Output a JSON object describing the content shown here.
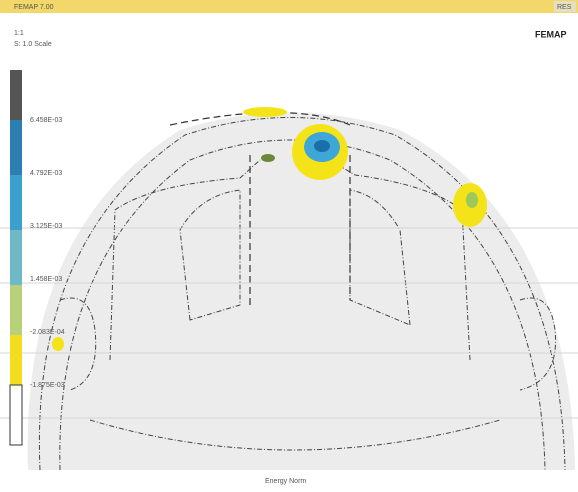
{
  "window": {
    "title": "FEMAP 7.00",
    "corner": "RES"
  },
  "view": {
    "info": [
      "1:1",
      "S: 1.0 Scale"
    ],
    "logo": "FEMAP",
    "footer": "Energy Norm"
  },
  "legend": {
    "labels": [
      "6.458E-03",
      "4.792E-03",
      "3.125E-03",
      "1.458E-03",
      "-2.083E-04",
      "-1.875E-03"
    ]
  }
}
